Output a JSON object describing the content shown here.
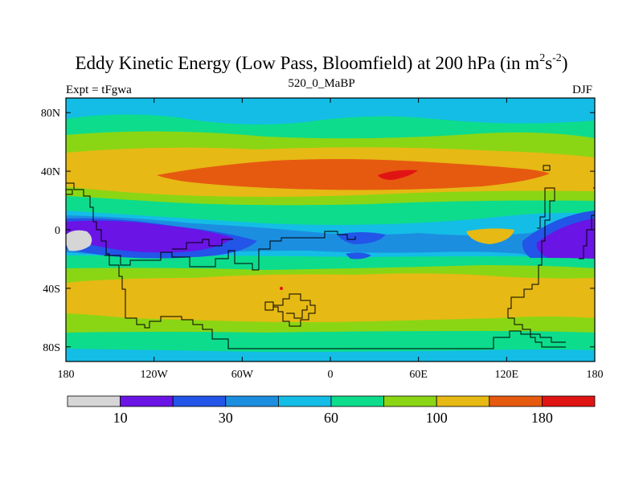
{
  "title": {
    "main": "Eddy Kinetic Energy (Low Pass, Bloomfield) at 200 hPa (in m",
    "unit_exp1": "2",
    "unit_s": "s",
    "unit_exp2": "-2",
    "close": ")"
  },
  "subtitles": {
    "left": "Expt = tFgwa",
    "center": "520_0_MaBP",
    "right": "DJF"
  },
  "map": {
    "projection": "cylindrical equidistant",
    "lon_range": [
      -180,
      180
    ],
    "lat_range": [
      -90,
      90
    ],
    "x_tick_labels": [
      "180",
      "120W",
      "60W",
      "0",
      "60E",
      "120E",
      "180"
    ],
    "y_tick_labels": [
      "80N",
      "40N",
      "0",
      "40S",
      "80S"
    ],
    "x_tick_values": [
      -180,
      -120,
      -60,
      0,
      60,
      120,
      180
    ],
    "y_tick_values": [
      80,
      40,
      0,
      -40,
      -80
    ],
    "field": {
      "name": "Eddy Kinetic Energy, low-pass filtered",
      "level": "200 hPa",
      "season": "DJF",
      "latitudinal_bands": [
        {
          "lat_range": [
            70,
            90
          ],
          "level": "60-80"
        },
        {
          "lat_range": [
            60,
            70
          ],
          "level": "80-100"
        },
        {
          "lat_range": [
            50,
            60
          ],
          "level": "100-140"
        },
        {
          "lat_range": [
            30,
            50
          ],
          "level": "140-160"
        },
        {
          "lat_range": [
            20,
            30
          ],
          "level": "100-140"
        },
        {
          "lat_range": [
            5,
            20
          ],
          "level": "40-80"
        },
        {
          "lat_range": [
            -25,
            5
          ],
          "level": "10-40"
        },
        {
          "lat_range": [
            -35,
            -25
          ],
          "level": "60-80"
        },
        {
          "lat_range": [
            -55,
            -35
          ],
          "level": "100-140"
        },
        {
          "lat_range": [
            -75,
            -55
          ],
          "level": "80-100"
        },
        {
          "lat_range": [
            -90,
            -75
          ],
          "level": "40-60"
        }
      ],
      "maxima": [
        {
          "lon": 40,
          "lat": 38,
          "level": ">180"
        }
      ],
      "minima": [
        {
          "lon": -170,
          "lat": -8,
          "level": "<10"
        }
      ]
    }
  },
  "colorbar": {
    "colors": [
      "#d6d6d6",
      "#6a14e6",
      "#2255e8",
      "#1c8ee0",
      "#14bde6",
      "#0ddc8c",
      "#8bd614",
      "#e6b914",
      "#e65a10",
      "#e11414"
    ],
    "labels": [
      "10",
      "30",
      "60",
      "100",
      "180"
    ],
    "label_positions": [
      1,
      3,
      5,
      7,
      9
    ],
    "value_boundaries": [
      10,
      20,
      30,
      40,
      60,
      80,
      100,
      140,
      180
    ]
  }
}
